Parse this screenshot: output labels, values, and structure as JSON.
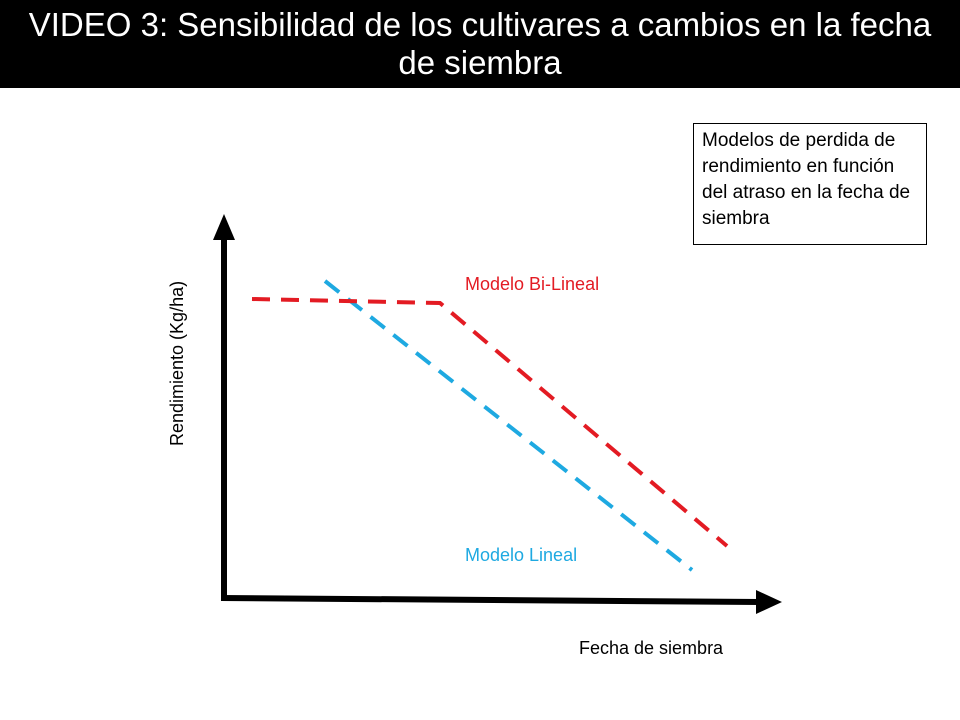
{
  "title": "VIDEO 3: Sensibilidad de los cultivares a cambios en la fecha de siembra",
  "note": "Modelos de perdida de rendimiento en función del atraso en la fecha de siembra",
  "axes": {
    "y_label": "Rendimiento (Kg/ha)",
    "x_label": "Fecha de siembra"
  },
  "series": {
    "bilinear": {
      "label": "Modelo Bi-Lineal",
      "color": "#e31b23"
    },
    "linear": {
      "label": "Modelo Lineal",
      "color": "#1ea9e1"
    }
  },
  "axis_color": "#000000"
}
